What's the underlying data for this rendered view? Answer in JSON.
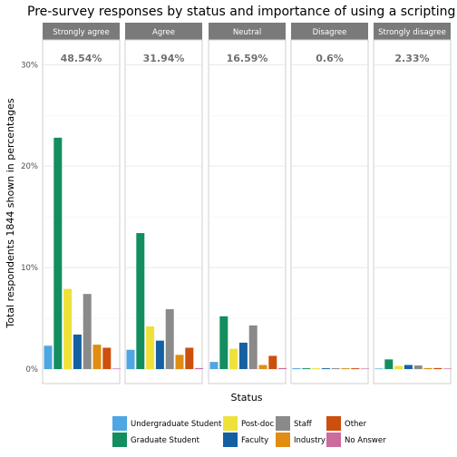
{
  "chart_data": {
    "type": "bar",
    "title": "Pre-survey responses by status and importance of using a scripting language",
    "xlabel": "Status",
    "ylabel": "Total respondents 1844 shown in percentages",
    "ylim": [
      0,
      0.315
    ],
    "y_ticks": [
      0,
      0.1,
      0.2,
      0.3
    ],
    "y_tick_labels": [
      "0%",
      "10%",
      "20%",
      "30%"
    ],
    "grid": true,
    "legend_position": "bottom",
    "panels": [
      {
        "label": "Strongly agree",
        "total_label": "48.54%",
        "values": [
          0.023,
          0.228,
          0.079,
          0.034,
          0.074,
          0.024,
          0.021,
          0.0
        ]
      },
      {
        "label": "Agree",
        "total_label": "31.94%",
        "values": [
          0.019,
          0.134,
          0.042,
          0.028,
          0.059,
          0.014,
          0.021,
          0.001
        ]
      },
      {
        "label": "Neutral",
        "total_label": "16.59%",
        "values": [
          0.007,
          0.052,
          0.02,
          0.026,
          0.043,
          0.004,
          0.013,
          0.001
        ]
      },
      {
        "label": "Disagree",
        "total_label": "0.6%",
        "values": [
          0.0008,
          0.0008,
          0.0008,
          0.0008,
          0.0008,
          0.0008,
          0.0008,
          0.0004
        ]
      },
      {
        "label": "Strongly disagree",
        "total_label": "2.33%",
        "values": [
          0.0005,
          0.0095,
          0.003,
          0.004,
          0.0035,
          0.001,
          0.001,
          0.0005
        ]
      }
    ],
    "series": [
      {
        "name": "Undergraduate Student",
        "color": "#4ea6e3"
      },
      {
        "name": "Graduate Student",
        "color": "#138e5f"
      },
      {
        "name": "Post-doc",
        "color": "#efe13a"
      },
      {
        "name": "Faculty",
        "color": "#1460a3"
      },
      {
        "name": "Staff",
        "color": "#8a8a8a"
      },
      {
        "name": "Industry",
        "color": "#e08d12"
      },
      {
        "name": "Other",
        "color": "#cc4f0c"
      },
      {
        "name": "No Answer",
        "color": "#cc6b9e"
      }
    ]
  }
}
